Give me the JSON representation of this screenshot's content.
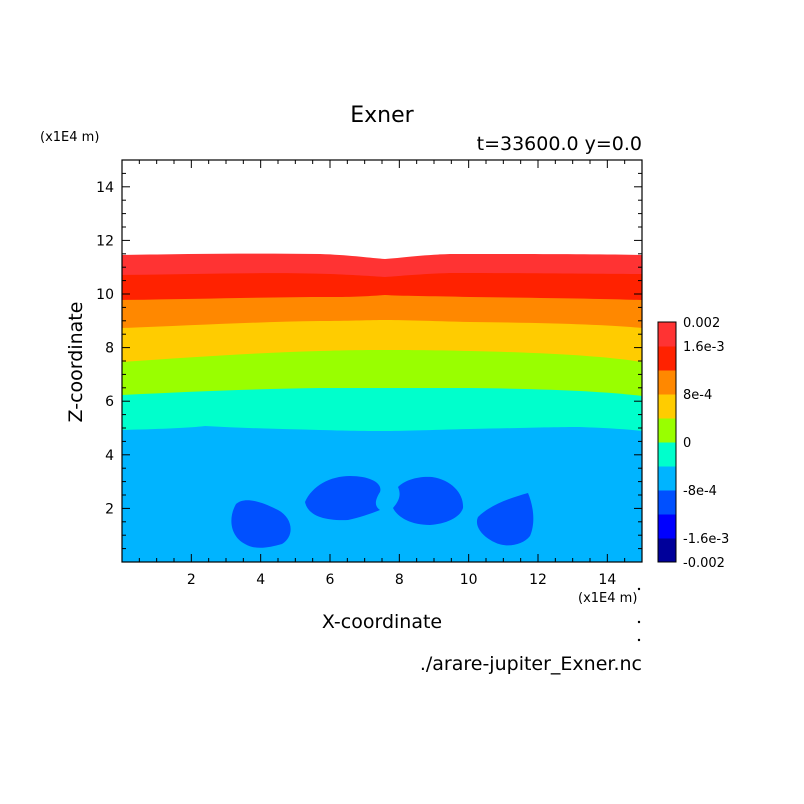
{
  "chart_data": {
    "type": "heatmap",
    "title": "Exner",
    "subtitle": "t=33600.0 y=0.0",
    "xlabel": "X-coordinate",
    "ylabel": "Z-coordinate",
    "x_unit": "(x1E4 m)",
    "y_unit": "(x1E4 m)",
    "xlim": [
      0,
      15
    ],
    "ylim": [
      0,
      15
    ],
    "x_ticks": [
      "2",
      "4",
      "6",
      "8",
      "10",
      "12",
      "14"
    ],
    "y_ticks": [
      "2",
      "4",
      "6",
      "8",
      "10",
      "12",
      "14"
    ],
    "source_file": "./arare-jupiter_Exner.nc",
    "legend_position": "right",
    "colorbar": {
      "labels": [
        "0.002",
        "1.6e-3",
        "8e-4",
        "0",
        "-8e-4",
        "-1.6e-3",
        "-0.002"
      ],
      "levels": [
        -0.002,
        -0.0016,
        -0.0012,
        -0.0008,
        -0.0004,
        0,
        0.0004,
        0.0008,
        0.0012,
        0.0016,
        0.002
      ],
      "colors": [
        "#00009a",
        "#0000ff",
        "#0050ff",
        "#00b4ff",
        "#00ffcc",
        "#99ff00",
        "#ffcc00",
        "#ff8800",
        "#ff2200",
        "#ff3333"
      ]
    },
    "bands": [
      {
        "name": "-1.2e-3 to -8e-4",
        "color": "#0050ff",
        "z_range": [
          0.5,
          3.3
        ]
      },
      {
        "name": "-8e-4 to -4e-4",
        "color": "#00b4ff",
        "z_range": [
          0,
          5.0
        ]
      },
      {
        "name": "-4e-4 to 0",
        "color": "#00ffcc",
        "z_range": [
          5.0,
          6.5
        ]
      },
      {
        "name": "0 to 4e-4",
        "color": "#99ff00",
        "z_range": [
          6.3,
          7.5
        ]
      },
      {
        "name": "4e-4 to 8e-4",
        "color": "#ffcc00",
        "z_range": [
          7.5,
          8.8
        ]
      },
      {
        "name": "8e-4 to 1.2e-3",
        "color": "#ff8800",
        "z_range": [
          8.8,
          9.9
        ]
      },
      {
        "name": "1.2e-3 to 1.6e-3",
        "color": "#ff2200",
        "z_range": [
          9.9,
          10.7
        ]
      },
      {
        "name": "1.6e-3 to 0.002",
        "color": "#ff3333",
        "z_range": [
          10.7,
          11.4
        ]
      }
    ]
  }
}
